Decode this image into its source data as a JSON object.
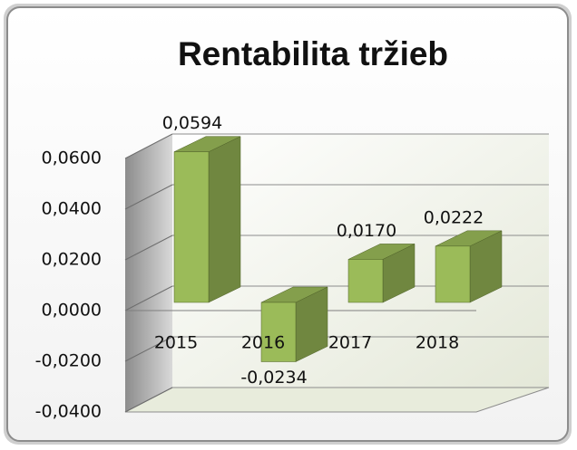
{
  "chart_data": {
    "type": "bar3d",
    "title": "Rentabilita tržieb",
    "categories": [
      "2015",
      "2016",
      "2017",
      "2018"
    ],
    "values": [
      0.0594,
      -0.0234,
      0.017,
      0.0222
    ],
    "value_labels": [
      "0,0594",
      "-0,0234",
      "0,0170",
      "0,0222"
    ],
    "color": "#9bbb59",
    "ylim": [
      -0.04,
      0.06
    ],
    "yticks": [
      {
        "value": -0.04,
        "label": "-0,0400"
      },
      {
        "value": -0.02,
        "label": "-0,0200"
      },
      {
        "value": 0,
        "label": "0,0000"
      },
      {
        "value": 0.02,
        "label": "0,0200"
      },
      {
        "value": 0.04,
        "label": "0,0400"
      },
      {
        "value": 0.06,
        "label": "0,0600"
      }
    ],
    "grid": true
  }
}
